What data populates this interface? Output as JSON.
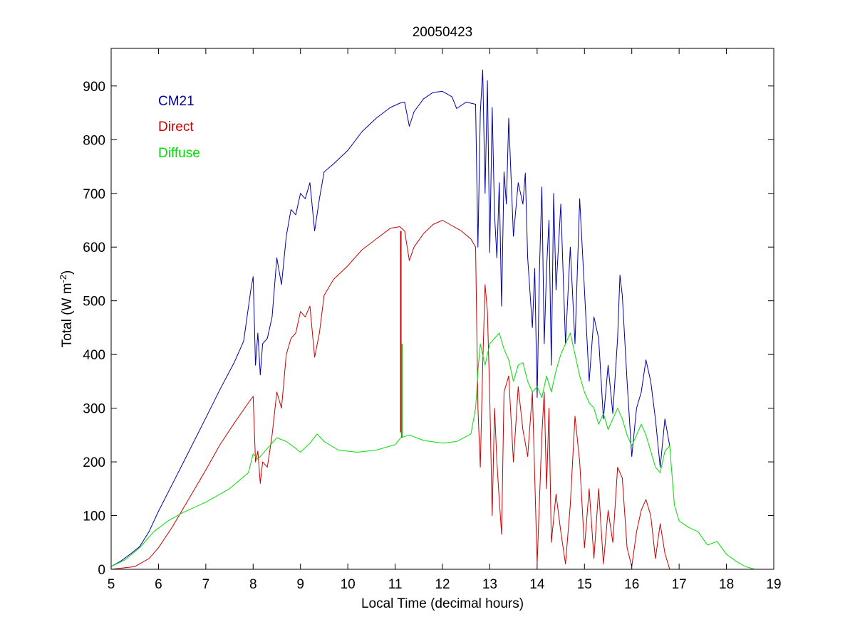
{
  "chart_data": {
    "type": "line",
    "title": "20050423",
    "xlabel": "Local Time (decimal hours)",
    "ylabel": {
      "prefix": "Total (W m",
      "superscript": "-2",
      "suffix": ")"
    },
    "xlim": [
      5,
      19
    ],
    "ylim": [
      0,
      970
    ],
    "x_ticks": [
      5,
      6,
      7,
      8,
      9,
      10,
      11,
      12,
      13,
      14,
      15,
      16,
      17,
      18,
      19
    ],
    "y_ticks": [
      0,
      100,
      200,
      300,
      400,
      500,
      600,
      700,
      800,
      900
    ],
    "grid": false,
    "legend_position": "top-left",
    "series": [
      {
        "name": "CM21",
        "color": "#0000a8",
        "points": [
          [
            5.0,
            5
          ],
          [
            5.2,
            15
          ],
          [
            5.4,
            28
          ],
          [
            5.6,
            42
          ],
          [
            5.8,
            70
          ],
          [
            6.0,
            108
          ],
          [
            6.3,
            160
          ],
          [
            6.6,
            212
          ],
          [
            7.0,
            282
          ],
          [
            7.3,
            335
          ],
          [
            7.6,
            385
          ],
          [
            7.8,
            425
          ],
          [
            7.95,
            520
          ],
          [
            8.0,
            545
          ],
          [
            8.05,
            380
          ],
          [
            8.1,
            440
          ],
          [
            8.15,
            362
          ],
          [
            8.2,
            420
          ],
          [
            8.3,
            430
          ],
          [
            8.4,
            470
          ],
          [
            8.5,
            580
          ],
          [
            8.6,
            530
          ],
          [
            8.7,
            620
          ],
          [
            8.8,
            670
          ],
          [
            8.9,
            660
          ],
          [
            9.0,
            700
          ],
          [
            9.1,
            690
          ],
          [
            9.2,
            720
          ],
          [
            9.3,
            630
          ],
          [
            9.4,
            690
          ],
          [
            9.5,
            740
          ],
          [
            9.7,
            755
          ],
          [
            10.0,
            780
          ],
          [
            10.3,
            815
          ],
          [
            10.6,
            840
          ],
          [
            10.9,
            860
          ],
          [
            11.1,
            868
          ],
          [
            11.2,
            870
          ],
          [
            11.3,
            825
          ],
          [
            11.4,
            852
          ],
          [
            11.6,
            876
          ],
          [
            11.8,
            888
          ],
          [
            12.0,
            890
          ],
          [
            12.2,
            880
          ],
          [
            12.3,
            858
          ],
          [
            12.5,
            870
          ],
          [
            12.7,
            866
          ],
          [
            12.75,
            600
          ],
          [
            12.8,
            850
          ],
          [
            12.85,
            930
          ],
          [
            12.9,
            700
          ],
          [
            12.95,
            910
          ],
          [
            13.0,
            590
          ],
          [
            13.05,
            860
          ],
          [
            13.1,
            660
          ],
          [
            13.15,
            580
          ],
          [
            13.2,
            720
          ],
          [
            13.25,
            490
          ],
          [
            13.3,
            740
          ],
          [
            13.35,
            680
          ],
          [
            13.4,
            840
          ],
          [
            13.5,
            620
          ],
          [
            13.6,
            720
          ],
          [
            13.7,
            680
          ],
          [
            13.75,
            738
          ],
          [
            13.8,
            580
          ],
          [
            13.9,
            450
          ],
          [
            13.95,
            560
          ],
          [
            14.0,
            320
          ],
          [
            14.05,
            560
          ],
          [
            14.1,
            712
          ],
          [
            14.15,
            420
          ],
          [
            14.2,
            560
          ],
          [
            14.25,
            650
          ],
          [
            14.3,
            380
          ],
          [
            14.35,
            700
          ],
          [
            14.4,
            520
          ],
          [
            14.5,
            680
          ],
          [
            14.6,
            420
          ],
          [
            14.7,
            600
          ],
          [
            14.8,
            420
          ],
          [
            14.9,
            690
          ],
          [
            15.0,
            520
          ],
          [
            15.1,
            350
          ],
          [
            15.2,
            470
          ],
          [
            15.3,
            430
          ],
          [
            15.4,
            280
          ],
          [
            15.5,
            380
          ],
          [
            15.6,
            290
          ],
          [
            15.7,
            430
          ],
          [
            15.75,
            548
          ],
          [
            15.8,
            510
          ],
          [
            15.9,
            350
          ],
          [
            16.0,
            210
          ],
          [
            16.1,
            300
          ],
          [
            16.2,
            330
          ],
          [
            16.3,
            390
          ],
          [
            16.4,
            350
          ],
          [
            16.5,
            280
          ],
          [
            16.6,
            190
          ],
          [
            16.7,
            280
          ],
          [
            16.8,
            230
          ]
        ]
      },
      {
        "name": "Direct",
        "color": "#cc0000",
        "points": [
          [
            5.0,
            0
          ],
          [
            5.5,
            5
          ],
          [
            5.8,
            20
          ],
          [
            6.0,
            40
          ],
          [
            6.3,
            80
          ],
          [
            6.6,
            125
          ],
          [
            7.0,
            185
          ],
          [
            7.3,
            232
          ],
          [
            7.6,
            272
          ],
          [
            7.9,
            310
          ],
          [
            8.0,
            322
          ],
          [
            8.05,
            200
          ],
          [
            8.1,
            220
          ],
          [
            8.15,
            160
          ],
          [
            8.2,
            200
          ],
          [
            8.3,
            190
          ],
          [
            8.4,
            250
          ],
          [
            8.5,
            330
          ],
          [
            8.6,
            300
          ],
          [
            8.7,
            400
          ],
          [
            8.8,
            430
          ],
          [
            8.9,
            440
          ],
          [
            9.0,
            480
          ],
          [
            9.1,
            470
          ],
          [
            9.2,
            490
          ],
          [
            9.3,
            395
          ],
          [
            9.4,
            440
          ],
          [
            9.5,
            510
          ],
          [
            9.7,
            540
          ],
          [
            10.0,
            565
          ],
          [
            10.3,
            595
          ],
          [
            10.6,
            615
          ],
          [
            10.9,
            635
          ],
          [
            11.1,
            638
          ],
          [
            11.2,
            630
          ],
          [
            11.3,
            575
          ],
          [
            11.4,
            600
          ],
          [
            11.6,
            625
          ],
          [
            11.8,
            642
          ],
          [
            12.0,
            650
          ],
          [
            12.2,
            640
          ],
          [
            12.4,
            630
          ],
          [
            12.6,
            615
          ],
          [
            12.7,
            600
          ],
          [
            12.75,
            300
          ],
          [
            12.8,
            190
          ],
          [
            12.85,
            380
          ],
          [
            12.9,
            530
          ],
          [
            12.95,
            480
          ],
          [
            13.0,
            320
          ],
          [
            13.05,
            100
          ],
          [
            13.1,
            300
          ],
          [
            13.15,
            200
          ],
          [
            13.2,
            130
          ],
          [
            13.25,
            65
          ],
          [
            13.3,
            330
          ],
          [
            13.4,
            360
          ],
          [
            13.5,
            200
          ],
          [
            13.6,
            340
          ],
          [
            13.7,
            260
          ],
          [
            13.8,
            210
          ],
          [
            13.9,
            330
          ],
          [
            14.0,
            10
          ],
          [
            14.1,
            250
          ],
          [
            14.15,
            330
          ],
          [
            14.2,
            150
          ],
          [
            14.25,
            300
          ],
          [
            14.3,
            50
          ],
          [
            14.4,
            140
          ],
          [
            14.5,
            70
          ],
          [
            14.6,
            10
          ],
          [
            14.7,
            120
          ],
          [
            14.8,
            285
          ],
          [
            14.9,
            200
          ],
          [
            15.0,
            40
          ],
          [
            15.1,
            150
          ],
          [
            15.2,
            20
          ],
          [
            15.3,
            150
          ],
          [
            15.4,
            10
          ],
          [
            15.5,
            110
          ],
          [
            15.6,
            50
          ],
          [
            15.7,
            190
          ],
          [
            15.8,
            170
          ],
          [
            15.9,
            40
          ],
          [
            16.0,
            5
          ],
          [
            16.1,
            70
          ],
          [
            16.2,
            110
          ],
          [
            16.3,
            130
          ],
          [
            16.4,
            100
          ],
          [
            16.5,
            20
          ],
          [
            16.6,
            85
          ],
          [
            16.7,
            30
          ],
          [
            16.8,
            0
          ],
          [
            17.0,
            0
          ],
          [
            17.5,
            0
          ],
          [
            18.0,
            0
          ],
          [
            18.5,
            0
          ]
        ]
      },
      {
        "name": "Diffuse",
        "color": "#00e000",
        "points": [
          [
            5.0,
            5
          ],
          [
            5.3,
            18
          ],
          [
            5.6,
            40
          ],
          [
            5.9,
            70
          ],
          [
            6.2,
            90
          ],
          [
            6.5,
            105
          ],
          [
            7.0,
            125
          ],
          [
            7.5,
            150
          ],
          [
            7.9,
            180
          ],
          [
            8.0,
            215
          ],
          [
            8.1,
            205
          ],
          [
            8.3,
            225
          ],
          [
            8.5,
            245
          ],
          [
            8.7,
            238
          ],
          [
            8.9,
            225
          ],
          [
            9.0,
            218
          ],
          [
            9.2,
            235
          ],
          [
            9.35,
            252
          ],
          [
            9.5,
            238
          ],
          [
            9.8,
            222
          ],
          [
            10.2,
            218
          ],
          [
            10.6,
            222
          ],
          [
            11.0,
            232
          ],
          [
            11.12,
            245
          ],
          [
            11.3,
            250
          ],
          [
            11.6,
            240
          ],
          [
            12.0,
            235
          ],
          [
            12.3,
            238
          ],
          [
            12.6,
            252
          ],
          [
            12.7,
            300
          ],
          [
            12.75,
            370
          ],
          [
            12.8,
            420
          ],
          [
            12.9,
            380
          ],
          [
            13.0,
            420
          ],
          [
            13.1,
            430
          ],
          [
            13.2,
            440
          ],
          [
            13.3,
            410
          ],
          [
            13.4,
            390
          ],
          [
            13.5,
            350
          ],
          [
            13.6,
            380
          ],
          [
            13.7,
            385
          ],
          [
            13.8,
            350
          ],
          [
            13.9,
            330
          ],
          [
            14.0,
            340
          ],
          [
            14.1,
            320
          ],
          [
            14.2,
            360
          ],
          [
            14.3,
            330
          ],
          [
            14.4,
            370
          ],
          [
            14.5,
            400
          ],
          [
            14.6,
            420
          ],
          [
            14.7,
            440
          ],
          [
            14.8,
            400
          ],
          [
            14.9,
            360
          ],
          [
            15.0,
            330
          ],
          [
            15.1,
            310
          ],
          [
            15.2,
            300
          ],
          [
            15.3,
            270
          ],
          [
            15.4,
            290
          ],
          [
            15.5,
            260
          ],
          [
            15.6,
            280
          ],
          [
            15.7,
            300
          ],
          [
            15.8,
            280
          ],
          [
            15.9,
            250
          ],
          [
            16.0,
            230
          ],
          [
            16.1,
            250
          ],
          [
            16.2,
            270
          ],
          [
            16.3,
            250
          ],
          [
            16.4,
            220
          ],
          [
            16.5,
            190
          ],
          [
            16.6,
            180
          ],
          [
            16.7,
            220
          ],
          [
            16.8,
            230
          ],
          [
            16.9,
            120
          ],
          [
            17.0,
            90
          ],
          [
            17.2,
            78
          ],
          [
            17.4,
            70
          ],
          [
            17.6,
            45
          ],
          [
            17.8,
            52
          ],
          [
            18.0,
            28
          ],
          [
            18.2,
            15
          ],
          [
            18.4,
            5
          ],
          [
            18.6,
            0
          ]
        ]
      }
    ],
    "spikes": [
      {
        "x": 11.12,
        "y_from": 255,
        "y_to": 630,
        "color": "#cc0000"
      },
      {
        "x": 11.14,
        "y_from": 245,
        "y_to": 420,
        "color": "#00b000"
      }
    ]
  }
}
